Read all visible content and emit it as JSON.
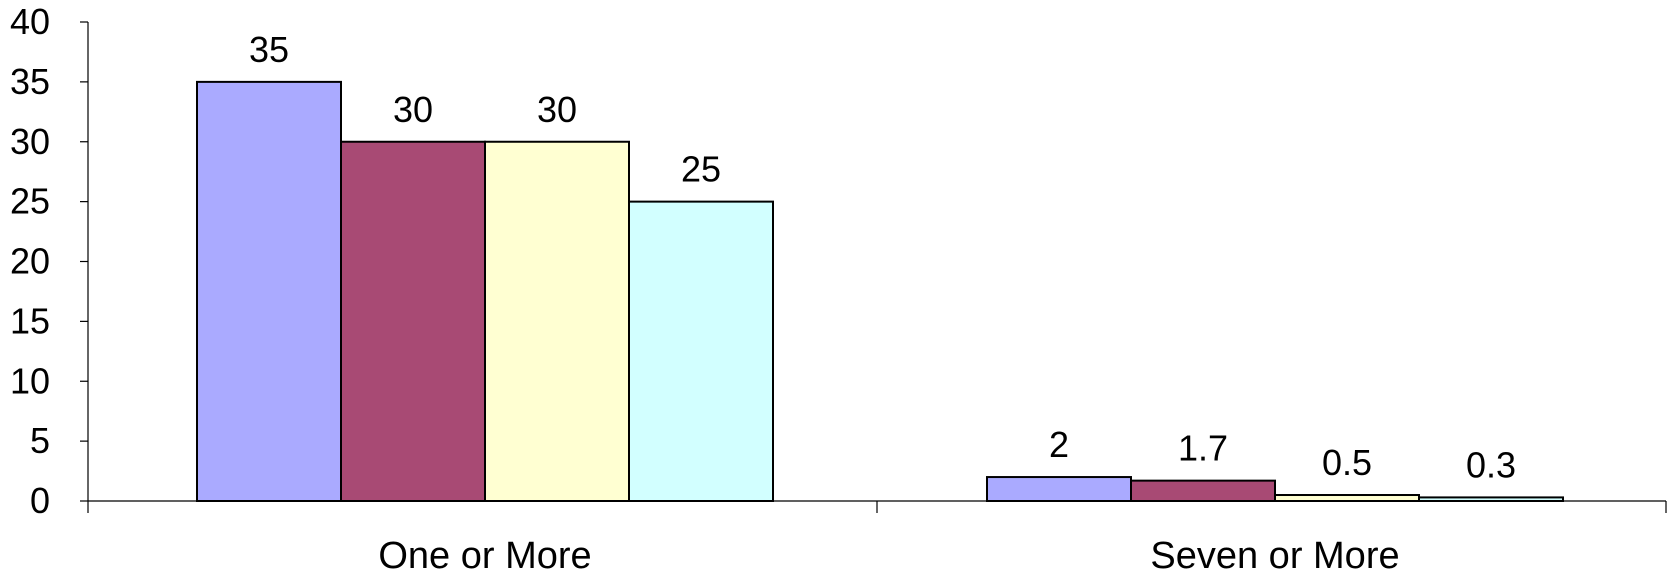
{
  "chart_data": {
    "type": "bar",
    "title": "",
    "xlabel": "",
    "ylabel": "",
    "categories": [
      "One or More",
      "Seven or More"
    ],
    "series": [
      {
        "values": [
          35,
          2
        ],
        "color": "#AAAAFF",
        "labels": [
          "35",
          "2"
        ]
      },
      {
        "values": [
          30,
          1.7
        ],
        "color": "#A84A74",
        "labels": [
          "30",
          "1.7"
        ]
      },
      {
        "values": [
          30,
          0.5
        ],
        "color": "#FFFFD2",
        "labels": [
          "30",
          "0.5"
        ]
      },
      {
        "values": [
          25,
          0.3
        ],
        "color": "#D2FFFF",
        "labels": [
          "25",
          "0.3"
        ]
      }
    ],
    "ylim": [
      0,
      40
    ],
    "yticks": [
      "0",
      "5",
      "10",
      "15",
      "20",
      "25",
      "30",
      "35",
      "40"
    ],
    "grid": false,
    "legend": "none"
  }
}
